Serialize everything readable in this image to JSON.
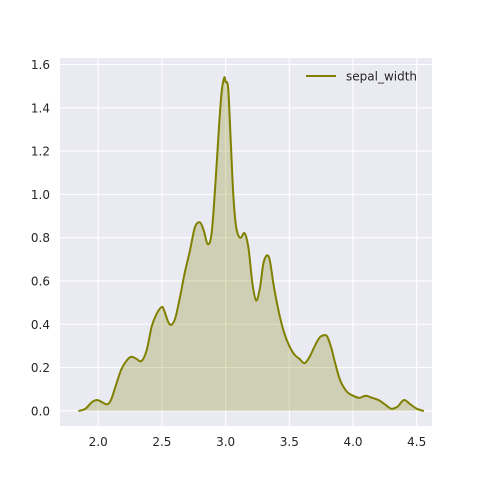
{
  "chart_data": {
    "type": "area",
    "title": "",
    "xlabel": "",
    "ylabel": "",
    "xlim": [
      1.7,
      4.62
    ],
    "ylim": [
      -0.07,
      1.63
    ],
    "grid": true,
    "legend_position": "top-right",
    "x_ticks": [
      {
        "value": 2.0,
        "label": "2.0"
      },
      {
        "value": 2.5,
        "label": "2.5"
      },
      {
        "value": 3.0,
        "label": "3.0"
      },
      {
        "value": 3.5,
        "label": "3.5"
      },
      {
        "value": 4.0,
        "label": "4.0"
      },
      {
        "value": 4.5,
        "label": "4.5"
      }
    ],
    "y_ticks": [
      {
        "value": 0.0,
        "label": "0.0"
      },
      {
        "value": 0.2,
        "label": "0.2"
      },
      {
        "value": 0.4,
        "label": "0.4"
      },
      {
        "value": 0.6,
        "label": "0.6"
      },
      {
        "value": 0.8,
        "label": "0.8"
      },
      {
        "value": 1.0,
        "label": "1.0"
      },
      {
        "value": 1.2,
        "label": "1.2"
      },
      {
        "value": 1.4,
        "label": "1.4"
      },
      {
        "value": 1.6,
        "label": "1.6"
      }
    ],
    "series": [
      {
        "name": "sepal_width",
        "color": "#808000",
        "fill_color": "#808000",
        "fill_opacity": 0.25,
        "x": [
          1.85,
          1.9,
          1.95,
          1.99,
          2.03,
          2.07,
          2.1,
          2.14,
          2.18,
          2.22,
          2.26,
          2.3,
          2.34,
          2.38,
          2.42,
          2.46,
          2.5,
          2.52,
          2.56,
          2.6,
          2.64,
          2.68,
          2.72,
          2.76,
          2.8,
          2.83,
          2.86,
          2.89,
          2.92,
          2.95,
          2.97,
          2.99,
          3.0,
          3.02,
          3.04,
          3.06,
          3.08,
          3.1,
          3.12,
          3.15,
          3.18,
          3.21,
          3.24,
          3.27,
          3.3,
          3.34,
          3.38,
          3.42,
          3.46,
          3.5,
          3.54,
          3.58,
          3.62,
          3.66,
          3.7,
          3.74,
          3.78,
          3.8,
          3.83,
          3.86,
          3.9,
          3.95,
          4.0,
          4.05,
          4.1,
          4.15,
          4.2,
          4.25,
          4.3,
          4.35,
          4.4,
          4.45,
          4.5,
          4.55
        ],
        "y": [
          0.0,
          0.01,
          0.04,
          0.05,
          0.04,
          0.03,
          0.05,
          0.12,
          0.19,
          0.23,
          0.25,
          0.24,
          0.23,
          0.28,
          0.39,
          0.45,
          0.48,
          0.46,
          0.4,
          0.42,
          0.52,
          0.64,
          0.74,
          0.85,
          0.87,
          0.83,
          0.77,
          0.82,
          1.05,
          1.33,
          1.48,
          1.54,
          1.52,
          1.49,
          1.25,
          1.0,
          0.86,
          0.81,
          0.8,
          0.82,
          0.75,
          0.59,
          0.51,
          0.57,
          0.69,
          0.71,
          0.57,
          0.45,
          0.36,
          0.3,
          0.26,
          0.24,
          0.22,
          0.25,
          0.3,
          0.34,
          0.35,
          0.34,
          0.29,
          0.22,
          0.14,
          0.09,
          0.07,
          0.06,
          0.07,
          0.06,
          0.05,
          0.03,
          0.01,
          0.02,
          0.05,
          0.03,
          0.01,
          0.0
        ]
      }
    ]
  }
}
